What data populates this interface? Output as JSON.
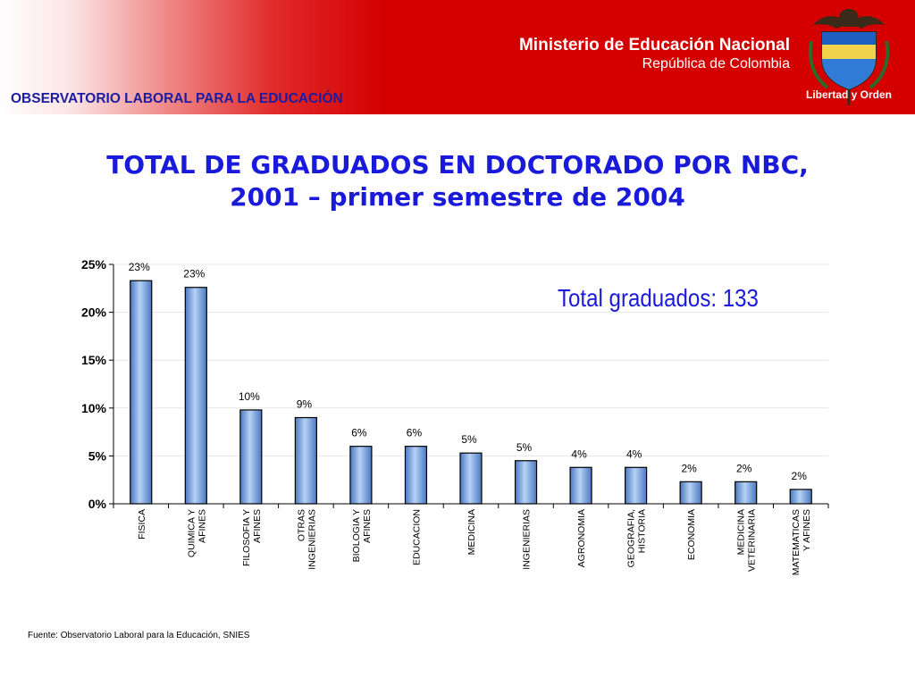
{
  "header": {
    "ministry_name": "Ministerio de Educación Nacional",
    "ministry_sub": "República de Colombia",
    "motto": "Libertad y Orden",
    "observatory": "OBSERVATORIO LABORAL PARA LA EDUCACIÓN"
  },
  "title_line1": "TOTAL DE GRADUADOS EN DOCTORADO POR NBC,",
  "title_line2": "2001 – primer semestre de 2004",
  "total_label": "Total graduados: 133",
  "source": "Fuente: Observatorio Laboral para la Educación, SNIES",
  "colors": {
    "header_red": "#d40000",
    "title_blue": "#1a1adb",
    "bar_fill": "#8db4e6",
    "observatory_blue": "#1c1ca0"
  },
  "chart_data": {
    "type": "bar",
    "categories": [
      [
        "FISICA"
      ],
      [
        "QUIMICA Y",
        "AFINES"
      ],
      [
        "FILOSOFIA Y",
        "AFINES"
      ],
      [
        "OTRAS",
        "INGENIERIAS"
      ],
      [
        "BIOLOGIA Y",
        "AFINES"
      ],
      [
        "EDUCACION"
      ],
      [
        "MEDICINA"
      ],
      [
        "INGENIERIAS"
      ],
      [
        "AGRONOMIA"
      ],
      [
        "GEOGRAFIA,",
        "HISTORIA"
      ],
      [
        "ECONOMIA"
      ],
      [
        "MEDICINA",
        "VETERINARIA"
      ],
      [
        "MATEMATICAS",
        "Y AFINES"
      ]
    ],
    "values": [
      23.3,
      22.6,
      9.8,
      9.0,
      6.0,
      6.0,
      5.3,
      4.5,
      3.8,
      3.8,
      2.3,
      2.3,
      1.5
    ],
    "data_labels": [
      "23%",
      "23%",
      "10%",
      "9%",
      "6%",
      "6%",
      "5%",
      "5%",
      "4%",
      "4%",
      "2%",
      "2%",
      "2%"
    ],
    "y_ticks": [
      {
        "value": 0,
        "label": "0%"
      },
      {
        "value": 5,
        "label": "5%"
      },
      {
        "value": 10,
        "label": "10%"
      },
      {
        "value": 15,
        "label": "15%"
      },
      {
        "value": 20,
        "label": "20%"
      },
      {
        "value": 25,
        "label": "25%"
      }
    ],
    "ylim": [
      0,
      25
    ],
    "grid": true
  }
}
